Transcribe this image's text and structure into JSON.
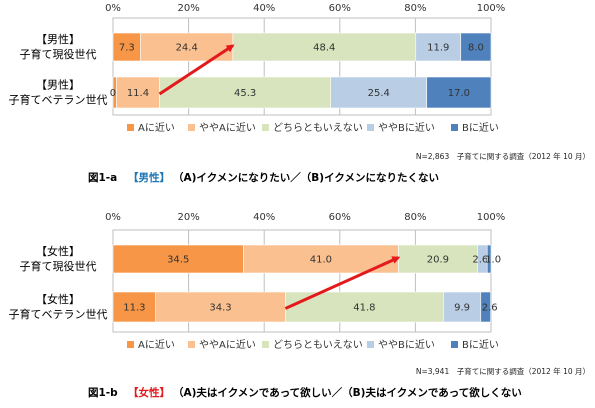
{
  "chart_data": [
    {
      "type": "bar",
      "orientation": "horizontal",
      "stacked": "percent",
      "xlim": [
        0,
        100
      ],
      "ticks": [
        "0%",
        "20%",
        "40%",
        "60%",
        "80%",
        "100%"
      ],
      "categories": [
        {
          "bracket": "【男性】",
          "name": "子育て現役世代"
        },
        {
          "bracket": "【男性】",
          "name": "子育てベテラン世代"
        }
      ],
      "series": [
        {
          "name": "Aに近い",
          "color": "#F79646",
          "values": [
            7.3,
            0.9
          ]
        },
        {
          "name": "ややAに近い",
          "color": "#FAC090",
          "values": [
            24.4,
            11.4
          ]
        },
        {
          "name": "どちらともいえない",
          "color": "#D7E4BD",
          "values": [
            48.4,
            45.3
          ]
        },
        {
          "name": "ややBに近い",
          "color": "#B9CDE5",
          "values": [
            11.9,
            25.4
          ]
        },
        {
          "name": "Bに近い",
          "color": "#4F81BD",
          "values": [
            8.0,
            17.0
          ]
        }
      ],
      "arrow": {
        "from": {
          "row": 1,
          "value": 12.3
        },
        "to": {
          "row": 0,
          "value": 31.7
        },
        "color": "#E3191B"
      },
      "note": "N=2,863　子育てに関する調査（2012 年 10 月）",
      "caption": {
        "prefix": "図1-a",
        "highlight": "【男性】",
        "highlight_color": "#1F77B4",
        "text": "（A)イクメンになりたい／（B)イクメンになりたくない"
      },
      "title": "",
      "grid": true
    },
    {
      "type": "bar",
      "orientation": "horizontal",
      "stacked": "percent",
      "xlim": [
        0,
        100
      ],
      "ticks": [
        "0%",
        "20%",
        "40%",
        "60%",
        "80%",
        "100%"
      ],
      "categories": [
        {
          "bracket": "【女性】",
          "name": "子育て現役世代"
        },
        {
          "bracket": "【女性】",
          "name": "子育てベテラン世代"
        }
      ],
      "series": [
        {
          "name": "Aに近い",
          "color": "#F79646",
          "values": [
            34.5,
            11.3
          ]
        },
        {
          "name": "ややAに近い",
          "color": "#FAC090",
          "values": [
            41.0,
            34.3
          ]
        },
        {
          "name": "どちらともいえない",
          "color": "#D7E4BD",
          "values": [
            20.9,
            41.8
          ]
        },
        {
          "name": "ややBに近い",
          "color": "#B9CDE5",
          "values": [
            2.6,
            9.9
          ]
        },
        {
          "name": "Bに近い",
          "color": "#4F81BD",
          "values": [
            1.0,
            2.6
          ]
        }
      ],
      "label_overrides": [
        {
          "row": 0,
          "text": "2.6",
          "series": 3
        },
        {
          "row": 0,
          "text": "1.0",
          "series": 4
        }
      ],
      "arrow": {
        "from": {
          "row": 1,
          "value": 45.6
        },
        "to": {
          "row": 0,
          "value": 75.5
        },
        "color": "#E3191B"
      },
      "note": "N=3,941　子育てに関する調査（2012 年 10 月）",
      "caption": {
        "prefix": "図1-b",
        "highlight": "【女性】",
        "highlight_color": "#E3191B",
        "text": "（A)夫はイクメンであって欲しい／（B)夫はイクメンであって欲しくない"
      },
      "title": "",
      "grid": true
    }
  ]
}
